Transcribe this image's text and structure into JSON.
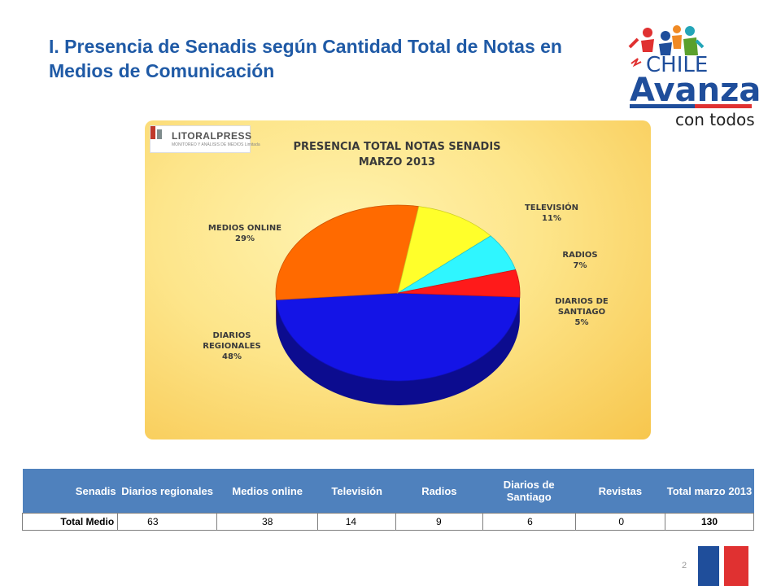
{
  "slide": {
    "title": "I. Presencia de Senadis según Cantidad Total de Notas en Medios de Comunicación",
    "page_number": "2"
  },
  "logo": {
    "line1": "CHILE",
    "line2": "Avanza",
    "line3": "con todos",
    "colors": {
      "blue": "#1f4e9b",
      "red": "#e03131",
      "orange": "#f08a24",
      "green": "#5aa02c",
      "teal": "#23a5b8"
    }
  },
  "source_logo": {
    "name": "LITORALPRESS",
    "tagline": "MONITOREO Y ANÁLISIS DE MEDIOS Limitada"
  },
  "chart_data": {
    "type": "pie",
    "title": "PRESENCIA TOTAL NOTAS SENADIS",
    "subtitle": "MARZO 2013",
    "slices": [
      {
        "name": "DIARIOS REGIONALES",
        "label_lines": [
          "DIARIOS",
          "REGIONALES"
        ],
        "percent": 48,
        "percent_label": "48%",
        "color": "#1414e6"
      },
      {
        "name": "MEDIOS ONLINE",
        "label_lines": [
          "MEDIOS ONLINE"
        ],
        "percent": 29,
        "percent_label": "29%",
        "color": "#ff6a00"
      },
      {
        "name": "TELEVISIÓN",
        "label_lines": [
          "TELEVISIÓN"
        ],
        "percent": 11,
        "percent_label": "11%",
        "color": "#ffff2b"
      },
      {
        "name": "RADIOS",
        "label_lines": [
          "RADIOS"
        ],
        "percent": 7,
        "percent_label": "7%",
        "color": "#2ff6ff"
      },
      {
        "name": "DIARIOS DE SANTIAGO",
        "label_lines": [
          "DIARIOS DE",
          "SANTIAGO"
        ],
        "percent": 5,
        "percent_label": "5%",
        "color": "#ff1a1a"
      }
    ]
  },
  "table": {
    "headers": [
      "Senadis",
      "Diarios regionales",
      "Medios online",
      "Televisión",
      "Radios",
      "Diarios de Santiago",
      "Revistas",
      "Total marzo 2013"
    ],
    "row": [
      "Total Medio",
      "63",
      "38",
      "14",
      "9",
      "6",
      "0",
      "130"
    ],
    "header_bg": "#4f81bd"
  }
}
